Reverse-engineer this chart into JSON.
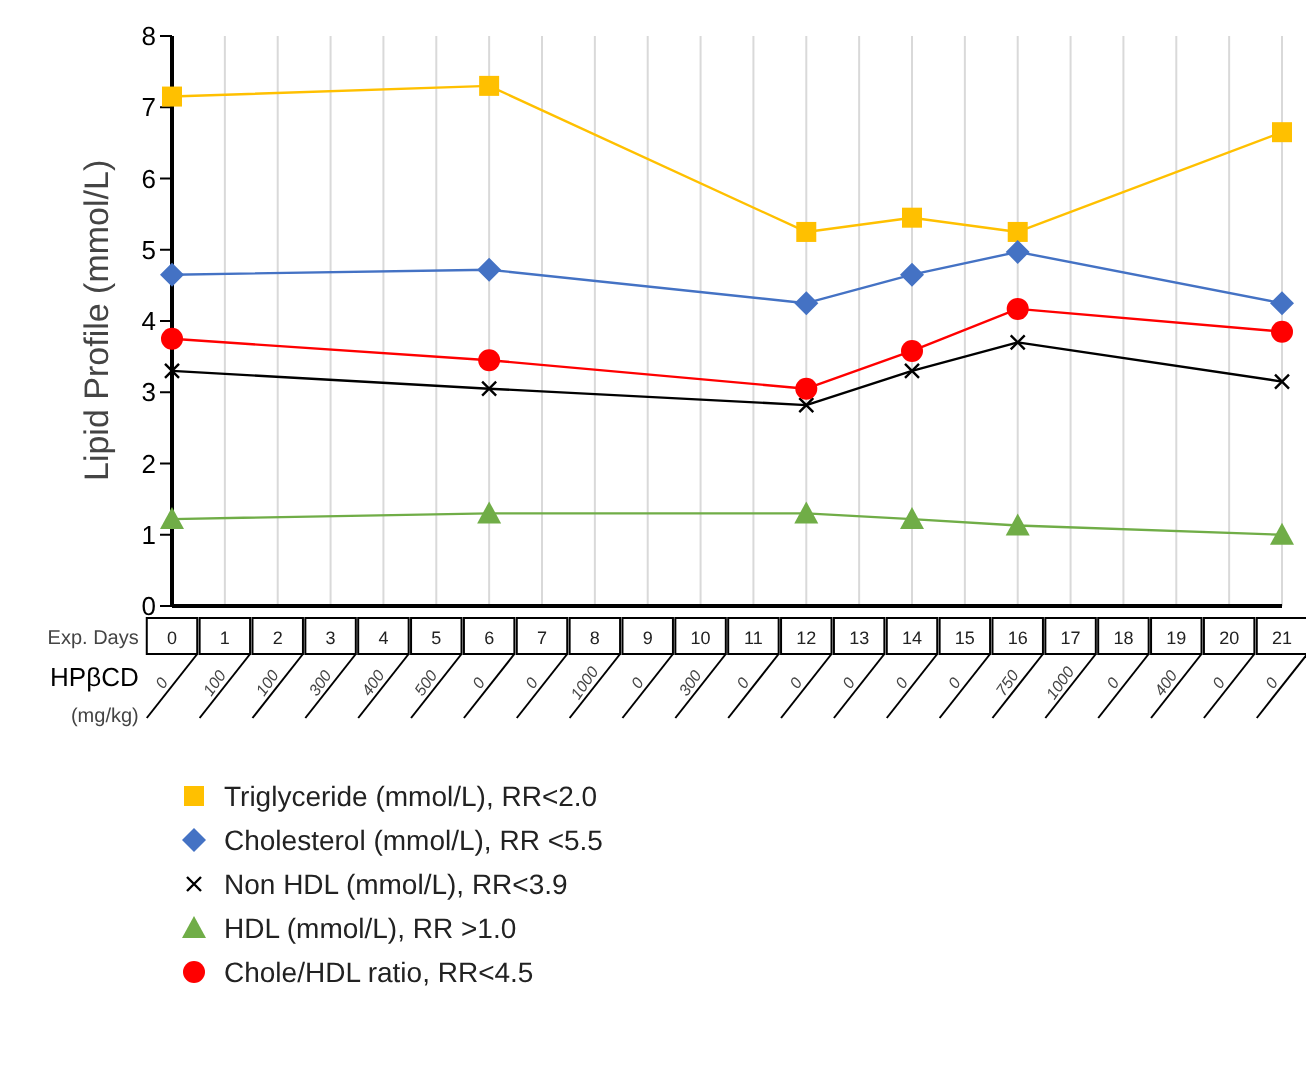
{
  "chart_data": {
    "type": "line",
    "ylabel": "Lipid Profile (mmol/L)",
    "xlabel": "Exp. Days",
    "categories": [
      "0",
      "1",
      "2",
      "3",
      "4",
      "5",
      "6",
      "7",
      "8",
      "9",
      "10",
      "11",
      "12",
      "13",
      "14",
      "15",
      "16",
      "17",
      "18",
      "19",
      "20",
      "21"
    ],
    "series": [
      {
        "name": "Triglyceride (mmol/L), RR<2.0",
        "color": "#ffc000",
        "marker": "square",
        "values": [
          7.15,
          null,
          null,
          null,
          null,
          null,
          7.3,
          null,
          null,
          null,
          null,
          null,
          5.25,
          null,
          5.45,
          null,
          5.25,
          null,
          null,
          null,
          null,
          6.65
        ]
      },
      {
        "name": "Cholesterol (mmol/L), RR <5.5",
        "color": "#4472c4",
        "marker": "diamond",
        "values": [
          4.65,
          null,
          null,
          null,
          null,
          null,
          4.72,
          null,
          null,
          null,
          null,
          null,
          4.25,
          null,
          4.65,
          null,
          4.97,
          null,
          null,
          null,
          null,
          4.25
        ]
      },
      {
        "name": "Non HDL (mmol/L), RR<3.9",
        "color": "#000000",
        "marker": "cross",
        "values": [
          3.3,
          null,
          null,
          null,
          null,
          null,
          3.05,
          null,
          null,
          null,
          null,
          null,
          2.82,
          null,
          3.3,
          null,
          3.7,
          null,
          null,
          null,
          null,
          3.15
        ]
      },
      {
        "name": "HDL  (mmol/L), RR >1.0",
        "color": "#70ad47",
        "marker": "triangle",
        "values": [
          1.22,
          null,
          null,
          null,
          null,
          null,
          1.3,
          null,
          null,
          null,
          null,
          null,
          1.3,
          null,
          1.22,
          null,
          1.13,
          null,
          null,
          null,
          null,
          1.0
        ]
      },
      {
        "name": "Chole/HDL ratio, RR<4.5",
        "color": "#ff0000",
        "marker": "circle",
        "values": [
          3.75,
          null,
          null,
          null,
          null,
          null,
          3.45,
          null,
          null,
          null,
          null,
          null,
          3.05,
          null,
          3.58,
          null,
          4.17,
          null,
          null,
          null,
          null,
          3.85
        ]
      }
    ],
    "annotations": [
      "HPβCD",
      "(mg/kg)",
      "0",
      "100",
      "100",
      "300",
      "400",
      "500",
      "0",
      "0",
      "1000",
      "0",
      "300",
      "0",
      "0",
      "0",
      "0",
      "0",
      "750",
      "1000",
      "0",
      "400",
      "0",
      "0"
    ],
    "ylim": [
      0,
      8
    ],
    "yticks": [
      0,
      1,
      2,
      3,
      4,
      5,
      6,
      7,
      8
    ],
    "grid": "x",
    "legend": "bottom"
  }
}
